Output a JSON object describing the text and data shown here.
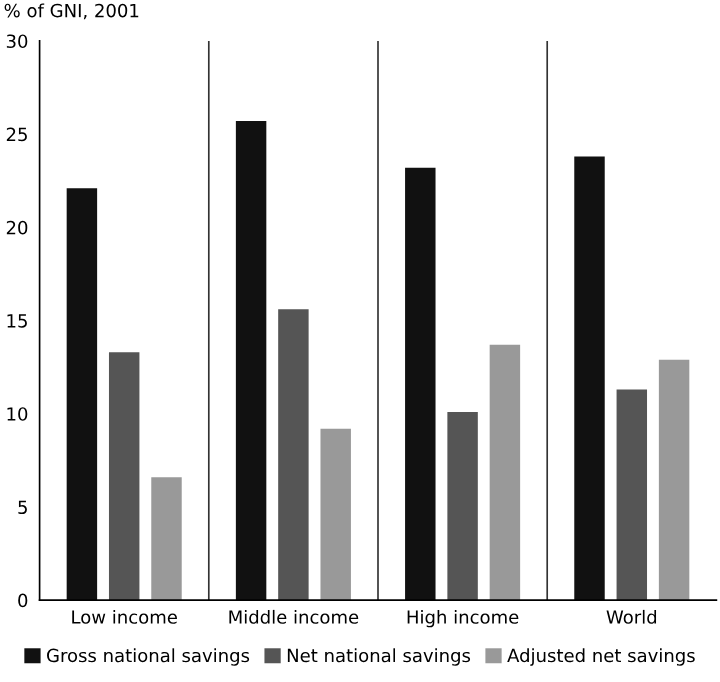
{
  "chart_data": {
    "type": "bar",
    "ylabel": "% of GNI, 2001",
    "categories": [
      "Low income",
      "Middle income",
      "High income",
      "World"
    ],
    "series": [
      {
        "name": "Gross national savings",
        "color": "#111111",
        "values": [
          22.1,
          25.7,
          23.2,
          23.8
        ]
      },
      {
        "name": "Net national savings",
        "color": "#555555",
        "values": [
          13.3,
          15.6,
          10.1,
          11.3
        ]
      },
      {
        "name": "Adjusted net savings",
        "color": "#999999",
        "values": [
          6.6,
          9.2,
          13.7,
          12.9
        ]
      }
    ],
    "ylim": [
      0,
      30
    ],
    "yticks": [
      0,
      5,
      10,
      15,
      20,
      25,
      30
    ],
    "grid": false,
    "legend": "bottom"
  }
}
